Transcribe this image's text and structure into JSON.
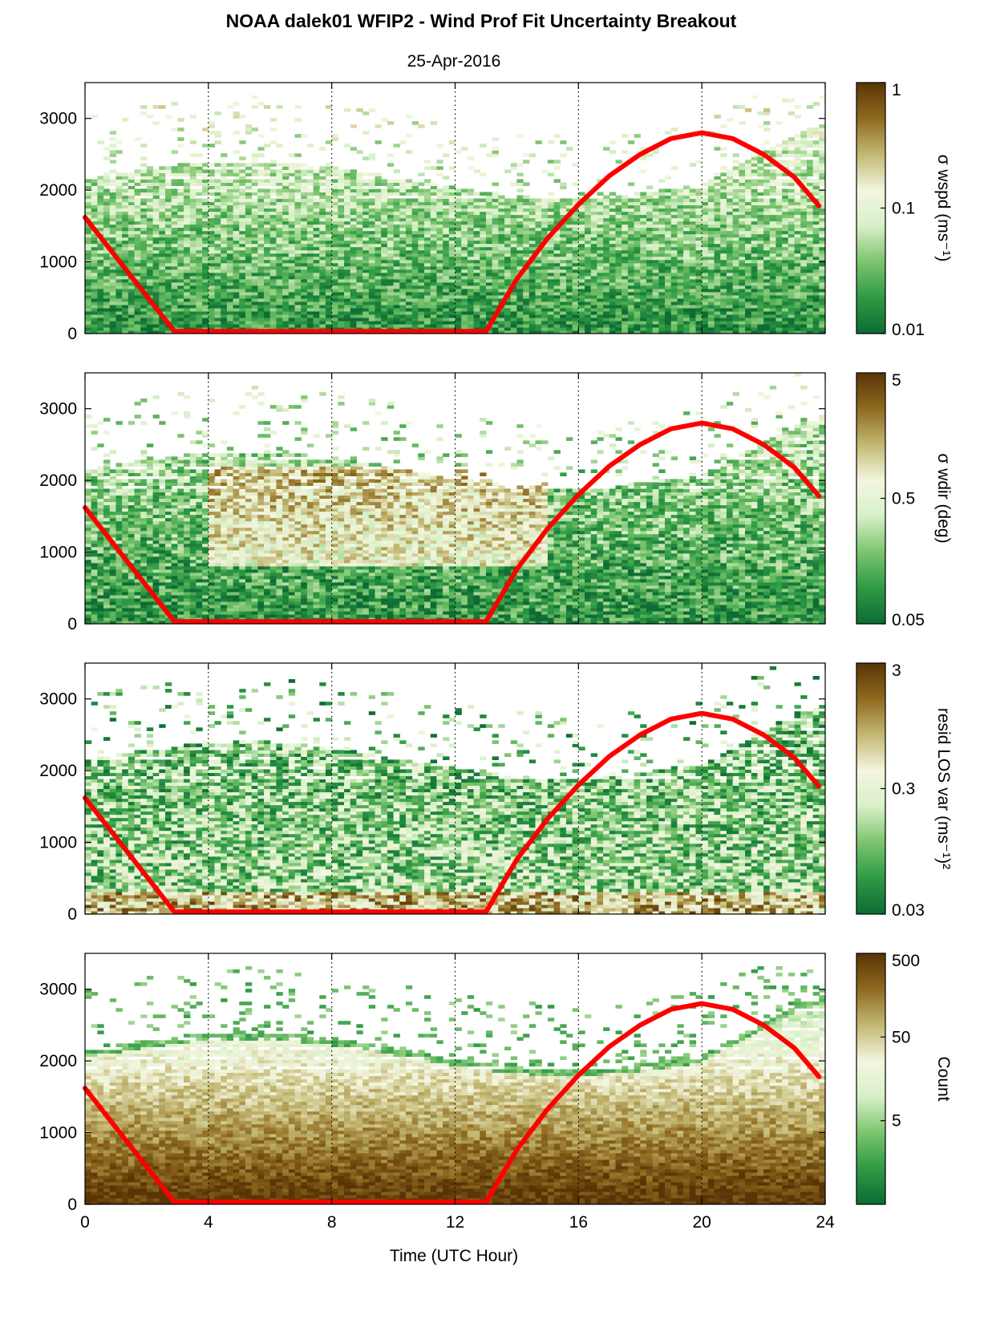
{
  "title": "NOAA dalek01 WFIP2 - Wind Prof Fit Uncertainty Breakout",
  "subtitle": "25-Apr-2016",
  "xlabel": "Time (UTC Hour)",
  "colors": {
    "colormap": [
      "#0d6b33",
      "#2e9a45",
      "#7cc46e",
      "#d8f0c8",
      "#f3f6df",
      "#c3b873",
      "#8e6a1f",
      "#5a3406"
    ],
    "daylight_curve": "#ff0000",
    "axis": "#000000"
  },
  "chart_data": [
    {
      "type": "heatmap",
      "x_range": [
        0,
        24
      ],
      "xticks": [
        0,
        4,
        8,
        12,
        16,
        20,
        24
      ],
      "y_range": [
        0,
        3500
      ],
      "yticks": [
        0,
        1000,
        2000,
        3000
      ],
      "grid": "vertical dotted lines at 4, 8, 12, 16, 20",
      "colorbar": {
        "label": "σ wspd (ms⁻¹)",
        "scale": "log",
        "range": [
          0.01,
          1
        ],
        "ticks": [
          "0.01",
          "0.1",
          "1"
        ]
      },
      "overlay_line": {
        "x": [
          0,
          2.9,
          13.0,
          14,
          15,
          16,
          17,
          18,
          19,
          20,
          21,
          22,
          23,
          23.8
        ],
        "y": [
          1620,
          30,
          30,
          760,
          1330,
          1800,
          2200,
          2500,
          2720,
          2800,
          2720,
          2500,
          2180,
          1780
        ]
      }
    },
    {
      "type": "heatmap",
      "x_range": [
        0,
        24
      ],
      "xticks": [
        0,
        4,
        8,
        12,
        16,
        20,
        24
      ],
      "y_range": [
        0,
        3500
      ],
      "yticks": [
        0,
        1000,
        2000,
        3000
      ],
      "grid": "vertical dotted lines at 4, 8, 12, 16, 20",
      "colorbar": {
        "label": "σ wdir (deg)",
        "scale": "log",
        "range": [
          0.05,
          5
        ],
        "ticks": [
          "0.05",
          "0.5",
          "5"
        ]
      },
      "overlay_line": {
        "x": [
          0,
          2.9,
          13.0,
          14,
          15,
          16,
          17,
          18,
          19,
          20,
          21,
          22,
          23,
          23.8
        ],
        "y": [
          1620,
          30,
          30,
          760,
          1330,
          1800,
          2200,
          2500,
          2720,
          2800,
          2720,
          2500,
          2180,
          1780
        ]
      }
    },
    {
      "type": "heatmap",
      "x_range": [
        0,
        24
      ],
      "xticks": [
        0,
        4,
        8,
        12,
        16,
        20,
        24
      ],
      "y_range": [
        0,
        3500
      ],
      "yticks": [
        0,
        1000,
        2000,
        3000
      ],
      "grid": "vertical dotted lines at 4, 8, 12, 16, 20",
      "colorbar": {
        "label": "resid LOS var (ms⁻¹)²",
        "scale": "log",
        "range": [
          0.03,
          3
        ],
        "ticks": [
          "0.03",
          "0.3",
          "3"
        ]
      },
      "overlay_line": {
        "x": [
          0,
          2.9,
          13.0,
          14,
          15,
          16,
          17,
          18,
          19,
          20,
          21,
          22,
          23,
          23.8
        ],
        "y": [
          1620,
          30,
          30,
          760,
          1330,
          1800,
          2200,
          2500,
          2720,
          2800,
          2720,
          2500,
          2180,
          1780
        ]
      }
    },
    {
      "type": "heatmap",
      "x_range": [
        0,
        24
      ],
      "xticks": [
        0,
        4,
        8,
        12,
        16,
        20,
        24
      ],
      "y_range": [
        0,
        3500
      ],
      "yticks": [
        0,
        1000,
        2000,
        3000
      ],
      "grid": "vertical dotted lines at 4, 8, 12, 16, 20",
      "colorbar": {
        "label": "Count",
        "scale": "log",
        "range": [
          0.5,
          500
        ],
        "ticks": [
          "5",
          "50",
          "500"
        ]
      },
      "overlay_line": {
        "x": [
          0,
          2.9,
          13.0,
          14,
          15,
          16,
          17,
          18,
          19,
          20,
          21,
          22,
          23,
          23.8
        ],
        "y": [
          1620,
          30,
          30,
          760,
          1330,
          1800,
          2200,
          2500,
          2720,
          2800,
          2720,
          2500,
          2180,
          1780
        ]
      }
    }
  ]
}
